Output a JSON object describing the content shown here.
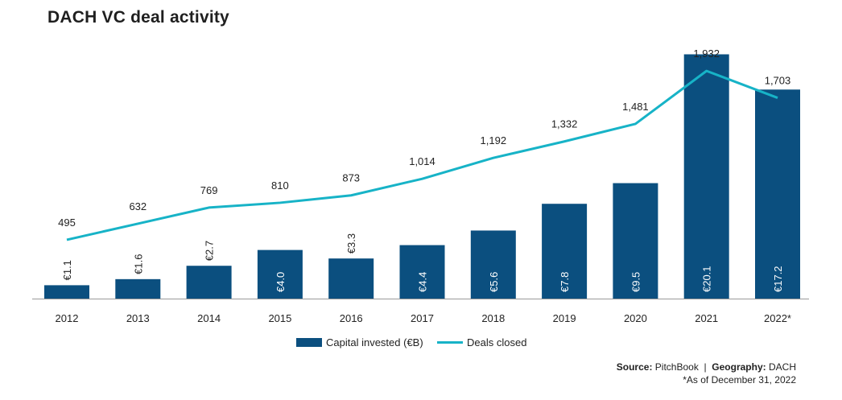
{
  "chart_data": {
    "type": "bar",
    "title": "DACH VC deal activity",
    "categories": [
      "2012",
      "2013",
      "2014",
      "2015",
      "2016",
      "2017",
      "2018",
      "2019",
      "2020",
      "2021",
      "2022*"
    ],
    "series": [
      {
        "name": "Capital invested (€B)",
        "type": "bar",
        "color": "#0b4f7f",
        "values": [
          1.1,
          1.6,
          2.7,
          4.0,
          3.3,
          4.4,
          5.6,
          7.8,
          9.5,
          20.1,
          17.2
        ],
        "labels": [
          "€1.1",
          "€1.6",
          "€2.7",
          "€4.0",
          "€3.3",
          "€4.4",
          "€5.6",
          "€7.8",
          "€9.5",
          "€20.1",
          "€17.2"
        ]
      },
      {
        "name": "Deals closed",
        "type": "line",
        "color": "#17b3c7",
        "values": [
          495,
          632,
          769,
          810,
          873,
          1014,
          1192,
          1332,
          1481,
          1932,
          1703
        ],
        "labels": [
          "495",
          "632",
          "769",
          "810",
          "873",
          "1,014",
          "1,192",
          "1,332",
          "1,481",
          "1,932",
          "1,703"
        ]
      }
    ],
    "legend_position": "bottom-center",
    "grid": false
  },
  "source": {
    "source_label": "Source:",
    "source_value": "PitchBook",
    "separator": "|",
    "geo_label": "Geography:",
    "geo_value": "DACH"
  },
  "footnote": "*As of December 31, 2022"
}
